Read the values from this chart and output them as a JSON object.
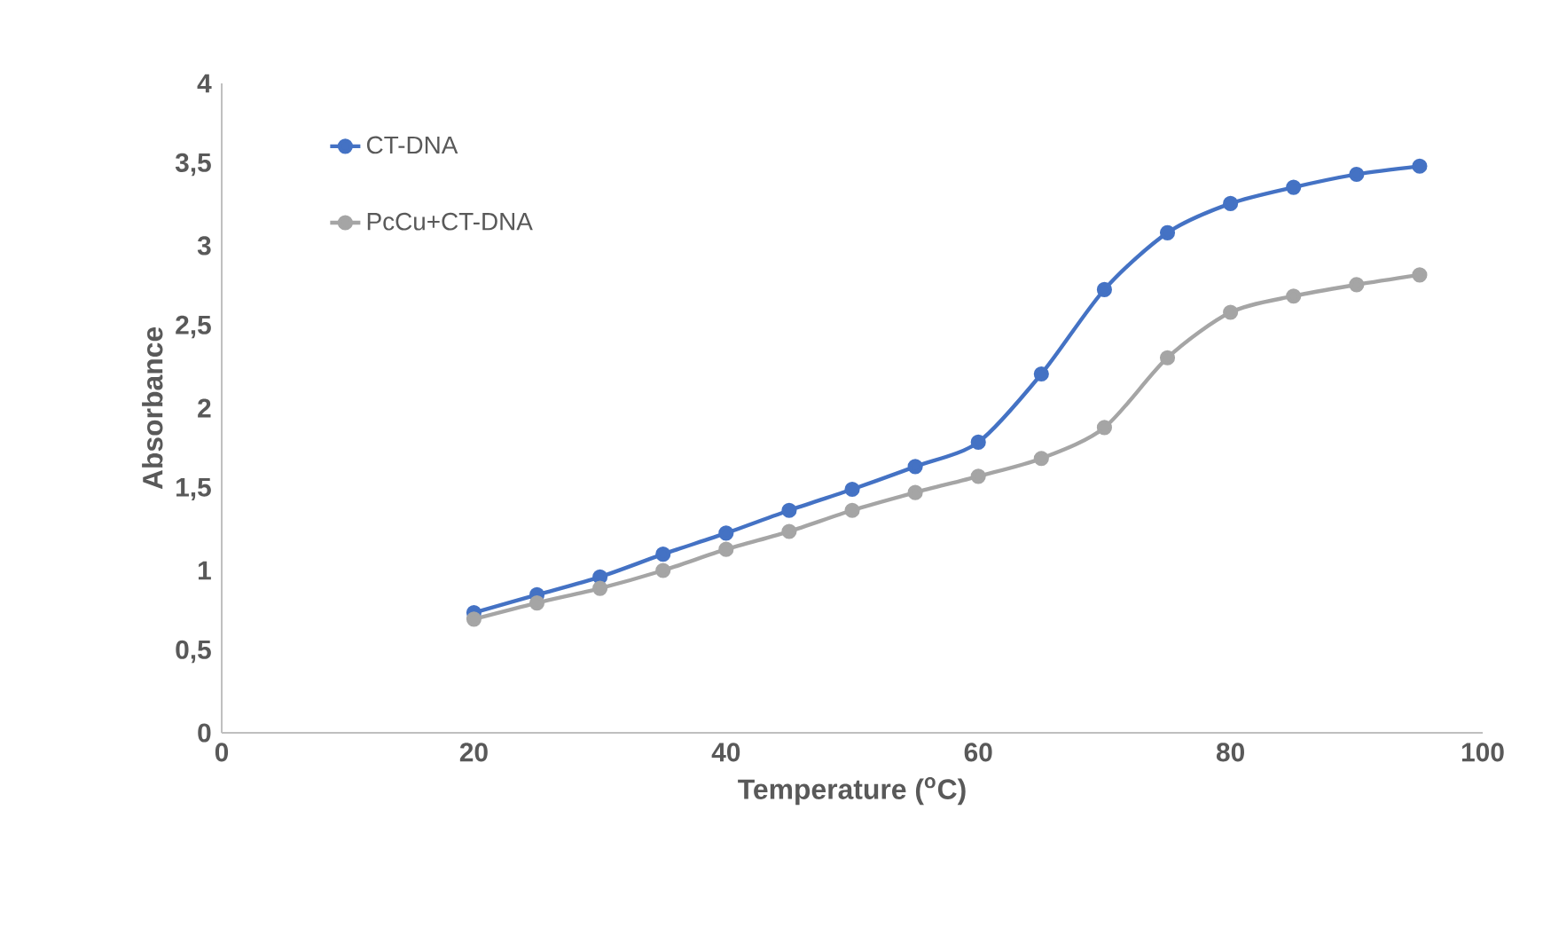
{
  "chart_data": {
    "type": "line",
    "xlabel": "Temperature ($^{o}$C)",
    "ylabel": "Absorbance",
    "x": [
      20,
      25,
      30,
      35,
      40,
      45,
      50,
      55,
      60,
      65,
      70,
      75,
      80,
      85,
      90,
      95
    ],
    "series": [
      {
        "name": "CT-DNA",
        "color": "#4472c4",
        "values": [
          0.74,
          0.85,
          0.96,
          1.1,
          1.23,
          1.37,
          1.5,
          1.64,
          1.79,
          2.21,
          2.73,
          3.08,
          3.26,
          3.36,
          3.44,
          3.49
        ]
      },
      {
        "name": "PcCu+CT-DNA",
        "color": "#a5a5a5",
        "values": [
          0.7,
          0.8,
          0.89,
          1.0,
          1.13,
          1.24,
          1.37,
          1.48,
          1.58,
          1.69,
          1.88,
          2.31,
          2.59,
          2.69,
          2.76,
          2.82
        ]
      }
    ],
    "xlim": [
      0,
      100
    ],
    "xticks": [
      0,
      20,
      40,
      60,
      80,
      100
    ],
    "ylim": [
      0,
      4
    ],
    "yticks": [
      0,
      {
        "value": 0.5,
        "label": "0,5"
      },
      1,
      {
        "value": 1.5,
        "label": "1,5"
      },
      2,
      {
        "value": 2.5,
        "label": "2,5"
      },
      3,
      {
        "value": 3.5,
        "label": "3,5"
      },
      4
    ],
    "grid": false,
    "legend": "top left",
    "marker": "circle",
    "line_style": "solid"
  }
}
